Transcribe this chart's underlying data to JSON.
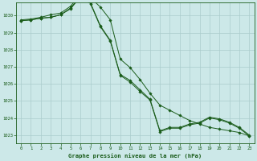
{
  "title": "Graphe pression niveau de la mer (hPa)",
  "background_color": "#cce8e8",
  "plot_bg_color": "#cce8e8",
  "grid_color": "#aacccc",
  "line_color": "#1a5c1a",
  "text_color": "#1a5c1a",
  "ylim": [
    1022.5,
    1030.75
  ],
  "xlim": [
    -0.5,
    23.5
  ],
  "yticks": [
    1023,
    1024,
    1025,
    1026,
    1027,
    1028,
    1029,
    1030
  ],
  "xticks": [
    0,
    1,
    2,
    3,
    4,
    5,
    6,
    7,
    8,
    9,
    10,
    11,
    12,
    13,
    14,
    15,
    16,
    17,
    18,
    19,
    20,
    21,
    22,
    23
  ],
  "series1": [
    1029.7,
    1029.75,
    1029.85,
    1029.9,
    1030.05,
    1030.45,
    1031.15,
    1030.75,
    1029.4,
    1028.55,
    1026.55,
    1026.2,
    1025.65,
    1025.1,
    1023.25,
    1023.45,
    1023.45,
    1023.65,
    1023.75,
    1024.05,
    1023.95,
    1023.75,
    1023.45,
    1023.0
  ],
  "series2": [
    1029.75,
    1029.8,
    1029.9,
    1030.05,
    1030.15,
    1030.55,
    1031.25,
    1031.05,
    1030.5,
    1029.75,
    1027.45,
    1026.95,
    1026.25,
    1025.45,
    1024.75,
    1024.45,
    1024.15,
    1023.85,
    1023.65,
    1023.45,
    1023.35,
    1023.25,
    1023.15,
    1022.95
  ],
  "series3": [
    1029.7,
    1029.75,
    1029.85,
    1029.9,
    1030.05,
    1030.4,
    1031.1,
    1030.7,
    1029.35,
    1028.5,
    1026.5,
    1026.1,
    1025.55,
    1025.05,
    1023.2,
    1023.4,
    1023.4,
    1023.6,
    1023.7,
    1024.0,
    1023.9,
    1023.7,
    1023.4,
    1022.95
  ]
}
